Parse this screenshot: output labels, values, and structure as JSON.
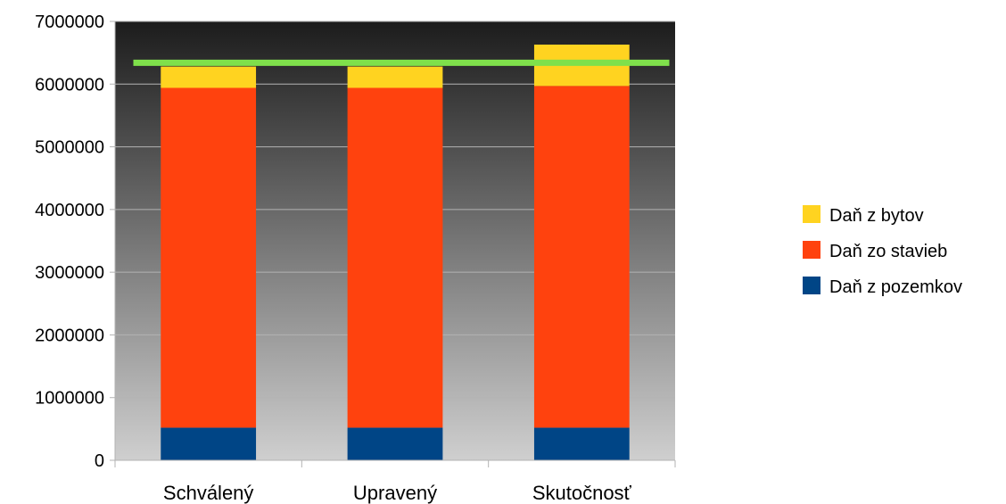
{
  "chart_data": {
    "type": "bar",
    "stacked": true,
    "categories": [
      "Schválený",
      "Upravený",
      "Skutočnosť"
    ],
    "series": [
      {
        "name": "Daň z pozemkov",
        "color": "#004586",
        "values": [
          520000,
          520000,
          520000
        ]
      },
      {
        "name": "Daň zo stavieb",
        "color": "#ff420e",
        "values": [
          5420000,
          5420000,
          5450000
        ]
      },
      {
        "name": "Daň z bytov",
        "color": "#ffd320",
        "values": [
          340000,
          340000,
          660000
        ]
      }
    ],
    "reference_line": {
      "value": 6340000,
      "color": "#7fe04b"
    },
    "ylim": [
      0,
      7000000
    ],
    "yticks": [
      "0",
      "1000000",
      "2000000",
      "3000000",
      "4000000",
      "5000000",
      "6000000",
      "7000000"
    ],
    "grid": true,
    "legend_position": "right",
    "legend": [
      "Daň z bytov",
      "Daň zo stavieb",
      "Daň z pozemkov"
    ]
  }
}
